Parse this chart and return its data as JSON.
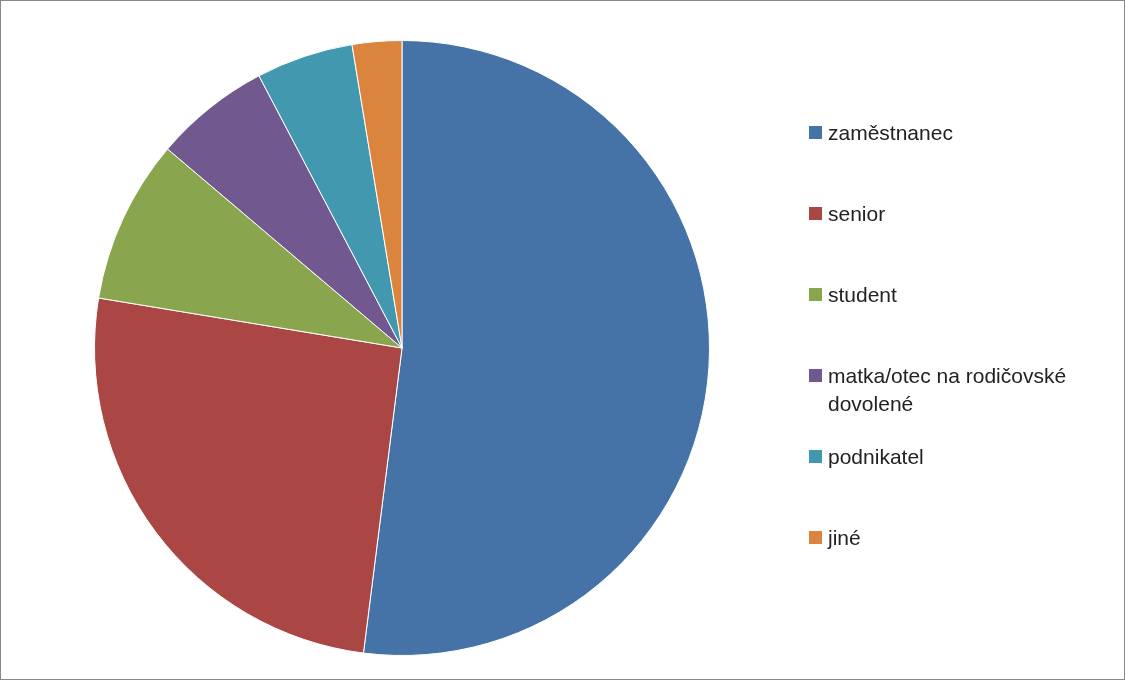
{
  "chart_data": {
    "type": "pie",
    "categories": [
      "zaměstnanec",
      "senior",
      "student",
      "matka/otec na rodičovské dovolené",
      "podnikatel",
      "jiné"
    ],
    "values": [
      52.0,
      25.6,
      8.6,
      6.1,
      5.1,
      2.6
    ],
    "colors": [
      "#4572a7",
      "#aa4643",
      "#89a54e",
      "#71588f",
      "#4198af",
      "#db843d"
    ],
    "legend": "right"
  }
}
